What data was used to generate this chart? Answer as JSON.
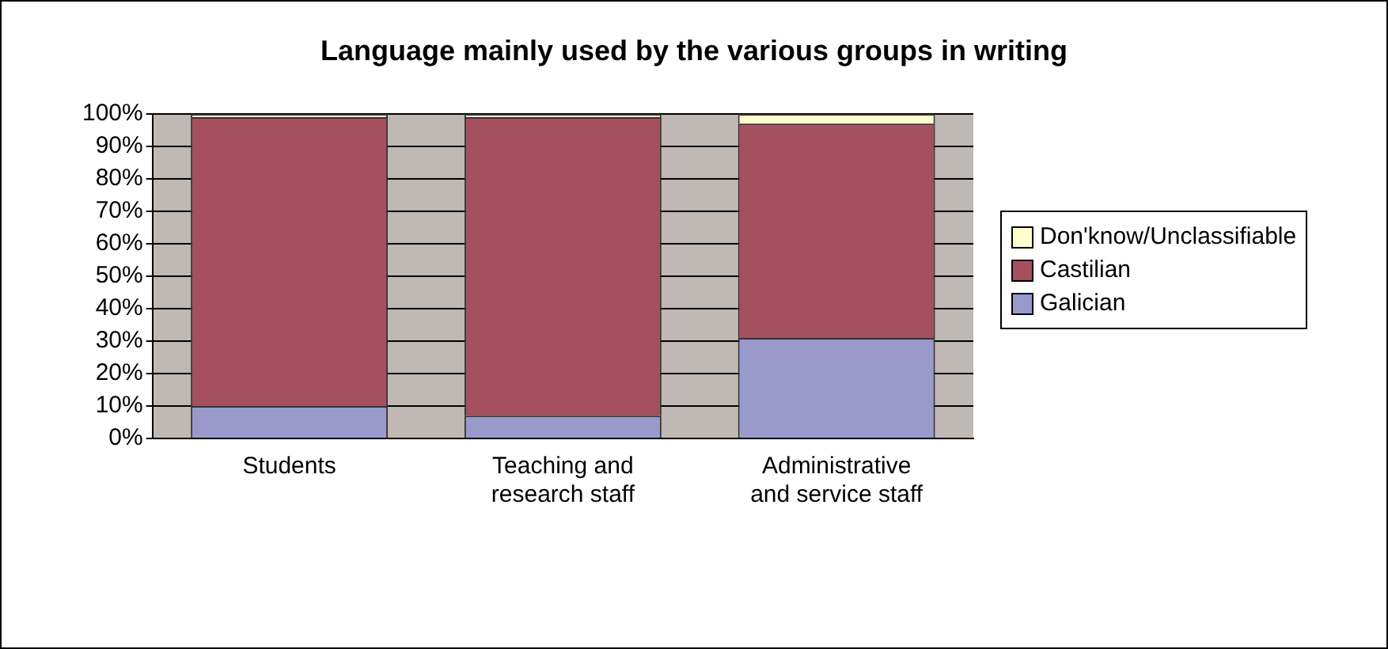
{
  "chart_data": {
    "type": "bar",
    "title": "Language mainly used by the various groups in writing",
    "categories": [
      "Students",
      "Teaching and research staff",
      "Administrative and service staff"
    ],
    "series": [
      {
        "name": "Galician",
        "color": "#9999cc",
        "values": [
          10,
          7,
          31
        ]
      },
      {
        "name": "Castilian",
        "color": "#a5505e",
        "values": [
          89,
          92,
          66
        ]
      },
      {
        "name": "Don'know/Unclassifiable",
        "color": "#ffffcc",
        "values": [
          1,
          1,
          3
        ]
      }
    ],
    "stacked": true,
    "ylim": [
      0,
      100
    ],
    "yticks": [
      {
        "value": 0,
        "label": "0%"
      },
      {
        "value": 10,
        "label": "10%"
      },
      {
        "value": 20,
        "label": "20%"
      },
      {
        "value": 30,
        "label": "30%"
      },
      {
        "value": 40,
        "label": "40%"
      },
      {
        "value": 50,
        "label": "50%"
      },
      {
        "value": 60,
        "label": "60%"
      },
      {
        "value": 70,
        "label": "70%"
      },
      {
        "value": 80,
        "label": "80%"
      },
      {
        "value": 90,
        "label": "90%"
      },
      {
        "value": 100,
        "label": "100%"
      }
    ],
    "grid": "y",
    "legend": "right"
  }
}
